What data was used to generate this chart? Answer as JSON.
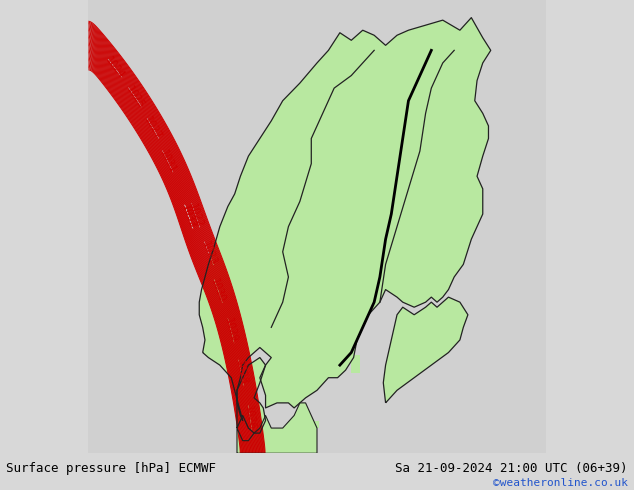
{
  "title_left": "Surface pressure [hPa] ECMWF",
  "title_right": "Sa 21-09-2024 21:00 UTC (06+39)",
  "copyright": "©weatheronline.co.uk",
  "bg_color_map": "#e0e0e0",
  "land_color": "#b8e8a0",
  "water_inland_color": "#c8d8e8",
  "contour_color_red": "#cc0000",
  "contour_color_blue": "#1a1aff",
  "border_color": "#111111",
  "border_lw": 1.0,
  "font_size_bottom": 9,
  "xlim": [
    -5,
    35
  ],
  "ylim": [
    54,
    72
  ],
  "aspect_scale": 1.8,
  "base_pressure": 1020.0,
  "contour_levels_all": [
    1008,
    1009,
    1010,
    1011,
    1012,
    1013,
    1014,
    1015,
    1016,
    1017,
    1018,
    1019,
    1020,
    1021,
    1022,
    1023,
    1024,
    1025,
    1026,
    1027,
    1028,
    1029,
    1030,
    1031,
    1032,
    1033,
    1034,
    1035,
    1036,
    1037,
    1038,
    1039,
    1040,
    1041,
    1042,
    1043,
    1044,
    1045,
    1046,
    1047,
    1048,
    1049,
    1050
  ]
}
